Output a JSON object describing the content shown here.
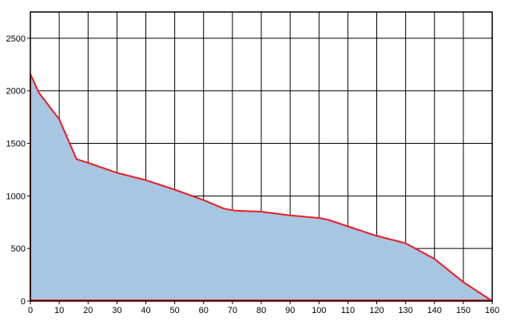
{
  "chart_data": {
    "type": "area",
    "title": "",
    "xlabel": "",
    "ylabel": "",
    "xlim": [
      0,
      160
    ],
    "ylim": [
      0,
      2750
    ],
    "x_ticks": [
      0,
      10,
      20,
      30,
      40,
      50,
      60,
      70,
      80,
      90,
      100,
      110,
      120,
      130,
      140,
      150,
      160
    ],
    "y_ticks": [
      0,
      500,
      1000,
      1500,
      2000,
      2500
    ],
    "grid": true,
    "legend": "none",
    "colors": {
      "fill": "#a7c6e2",
      "line": "#ee1c24",
      "grid": "#000000"
    },
    "series": [
      {
        "x": [
          0,
          3,
          10,
          16,
          20,
          30,
          40,
          50,
          60,
          67,
          71,
          80,
          90,
          100,
          103,
          110,
          120,
          130,
          140,
          150,
          160
        ],
        "y": [
          2160,
          1980,
          1730,
          1350,
          1315,
          1220,
          1150,
          1060,
          960,
          880,
          860,
          850,
          815,
          790,
          775,
          710,
          620,
          550,
          400,
          180,
          0
        ]
      }
    ]
  }
}
